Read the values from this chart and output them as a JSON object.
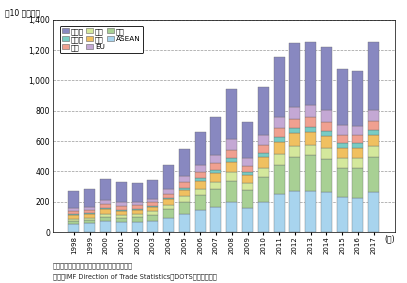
{
  "years": [
    "1998",
    "1999",
    "2000",
    "2001",
    "2002",
    "2003",
    "2004",
    "2005",
    "2006",
    "2007",
    "2008",
    "2009",
    "2010",
    "2011",
    "2012",
    "2013",
    "2014",
    "2015",
    "2016",
    "2017"
  ],
  "series": {
    "ASEAN": [
      55,
      58,
      70,
      65,
      68,
      75,
      95,
      120,
      145,
      165,
      195,
      160,
      200,
      250,
      270,
      270,
      265,
      230,
      225,
      265
    ],
    "中国": [
      18,
      20,
      28,
      28,
      32,
      40,
      58,
      80,
      100,
      118,
      145,
      120,
      165,
      195,
      225,
      235,
      220,
      195,
      200,
      230
    ],
    "韓国": [
      15,
      16,
      20,
      18,
      20,
      22,
      28,
      35,
      42,
      48,
      55,
      44,
      58,
      68,
      72,
      72,
      70,
      62,
      63,
      70
    ],
    "日本": [
      25,
      25,
      32,
      30,
      28,
      28,
      35,
      45,
      52,
      58,
      68,
      52,
      72,
      82,
      85,
      82,
      78,
      68,
      65,
      72
    ],
    "インド": [
      5,
      5,
      6,
      6,
      7,
      8,
      10,
      13,
      16,
      20,
      25,
      20,
      28,
      32,
      35,
      37,
      36,
      32,
      33,
      37
    ],
    "米国": [
      20,
      20,
      26,
      24,
      22,
      22,
      28,
      35,
      40,
      46,
      55,
      42,
      52,
      60,
      62,
      62,
      60,
      53,
      52,
      58
    ],
    "EU": [
      22,
      22,
      28,
      26,
      24,
      26,
      32,
      40,
      48,
      56,
      68,
      50,
      65,
      75,
      78,
      78,
      76,
      65,
      63,
      73
    ],
    "その他": [
      110,
      120,
      140,
      130,
      125,
      125,
      155,
      180,
      220,
      245,
      330,
      240,
      320,
      390,
      420,
      415,
      415,
      370,
      360,
      450
    ]
  },
  "colors": {
    "ASEAN": "#a8d4ee",
    "中国": "#a8d094",
    "韓国": "#d4e89c",
    "日本": "#f0c060",
    "インド": "#78ccc4",
    "米国": "#f0a090",
    "EU": "#c4a8d4",
    "その他": "#8888c0"
  },
  "ylabel": "（10 億ドル）",
  "ylim": [
    0,
    1400
  ],
  "yticks": [
    0,
    200,
    400,
    600,
    800,
    1000,
    1200,
    1400
  ],
  "yticklabels": [
    "0",
    "200",
    "400",
    "600",
    "800",
    "1,000",
    "1,200",
    "1,400"
  ],
  "footnote1": "備考：中国は、本国、香港、マカオを含む。",
  "footnote2": "資料：IMF Direction of Trade Statistics（DOTS）から作成。",
  "legend_order": [
    "その他",
    "インド",
    "米国",
    "韓国",
    "日本",
    "EU",
    "中国",
    "ASEAN"
  ],
  "stack_order": [
    "ASEAN",
    "中国",
    "韓国",
    "日本",
    "インド",
    "米国",
    "EU",
    "その他"
  ]
}
